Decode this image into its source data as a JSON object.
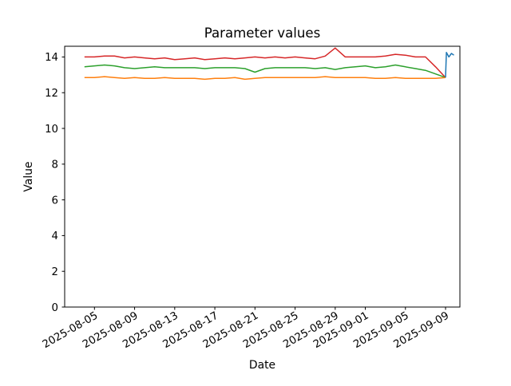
{
  "chart_data": {
    "type": "line",
    "title": "Parameter values",
    "xlabel": "Date",
    "ylabel": "Value",
    "grid": false,
    "legend": false,
    "ylim": [
      0,
      14.6
    ],
    "xlim_days_from_first_date": [
      -1.97,
      37.43
    ],
    "y_ticks": [
      0,
      2,
      4,
      6,
      8,
      10,
      12,
      14
    ],
    "x_ticks": [
      "2025-08-05",
      "2025-08-09",
      "2025-08-13",
      "2025-08-17",
      "2025-08-21",
      "2025-08-25",
      "2025-08-29",
      "2025-09-01",
      "2025-09-05",
      "2025-09-09"
    ],
    "x": [
      "2025-08-04",
      "2025-08-05",
      "2025-08-06",
      "2025-08-07",
      "2025-08-08",
      "2025-08-09",
      "2025-08-10",
      "2025-08-11",
      "2025-08-12",
      "2025-08-13",
      "2025-08-14",
      "2025-08-15",
      "2025-08-16",
      "2025-08-17",
      "2025-08-18",
      "2025-08-19",
      "2025-08-20",
      "2025-08-21",
      "2025-08-22",
      "2025-08-23",
      "2025-08-24",
      "2025-08-25",
      "2025-08-26",
      "2025-08-27",
      "2025-08-28",
      "2025-08-29",
      "2025-08-30",
      "2025-08-31",
      "2025-09-01",
      "2025-09-02",
      "2025-09-03",
      "2025-09-04",
      "2025-09-05",
      "2025-09-06",
      "2025-09-07",
      "2025-09-08",
      "2025-09-09"
    ],
    "series": [
      {
        "name": "red-line",
        "color": "#d62728",
        "values": [
          14.0,
          14.0,
          14.05,
          14.05,
          13.95,
          14.0,
          13.95,
          13.9,
          13.95,
          13.85,
          13.9,
          13.95,
          13.85,
          13.9,
          13.95,
          13.9,
          13.95,
          14.0,
          13.95,
          14.0,
          13.95,
          14.0,
          13.95,
          13.9,
          14.05,
          14.5,
          14.0,
          14.0,
          14.0,
          14.0,
          14.05,
          14.15,
          14.1,
          14.0,
          14.0,
          13.45,
          12.85
        ]
      },
      {
        "name": "green-line",
        "color": "#2ca02c",
        "values": [
          13.45,
          13.5,
          13.55,
          13.5,
          13.4,
          13.35,
          13.4,
          13.45,
          13.4,
          13.4,
          13.4,
          13.4,
          13.35,
          13.4,
          13.4,
          13.4,
          13.35,
          13.15,
          13.35,
          13.4,
          13.4,
          13.4,
          13.4,
          13.35,
          13.4,
          13.3,
          13.4,
          13.45,
          13.5,
          13.4,
          13.45,
          13.55,
          13.45,
          13.35,
          13.25,
          13.05,
          12.85
        ]
      },
      {
        "name": "orange-line",
        "color": "#ff7f0e",
        "values": [
          12.85,
          12.85,
          12.9,
          12.85,
          12.8,
          12.85,
          12.8,
          12.8,
          12.85,
          12.8,
          12.8,
          12.8,
          12.75,
          12.8,
          12.8,
          12.85,
          12.75,
          12.8,
          12.85,
          12.85,
          12.85,
          12.85,
          12.85,
          12.85,
          12.9,
          12.85,
          12.85,
          12.85,
          12.85,
          12.8,
          12.8,
          12.85,
          12.8,
          12.8,
          12.8,
          12.8,
          12.85
        ]
      },
      {
        "name": "blue-line",
        "color": "#1f77b4",
        "x": [
          "2025-09-09 00:00",
          "2025-09-09 02:00",
          "2025-09-09 08:00",
          "2025-09-09 14:00",
          "2025-09-09 20:00"
        ],
        "values": [
          12.85,
          14.25,
          14.0,
          14.2,
          14.1
        ]
      }
    ]
  }
}
